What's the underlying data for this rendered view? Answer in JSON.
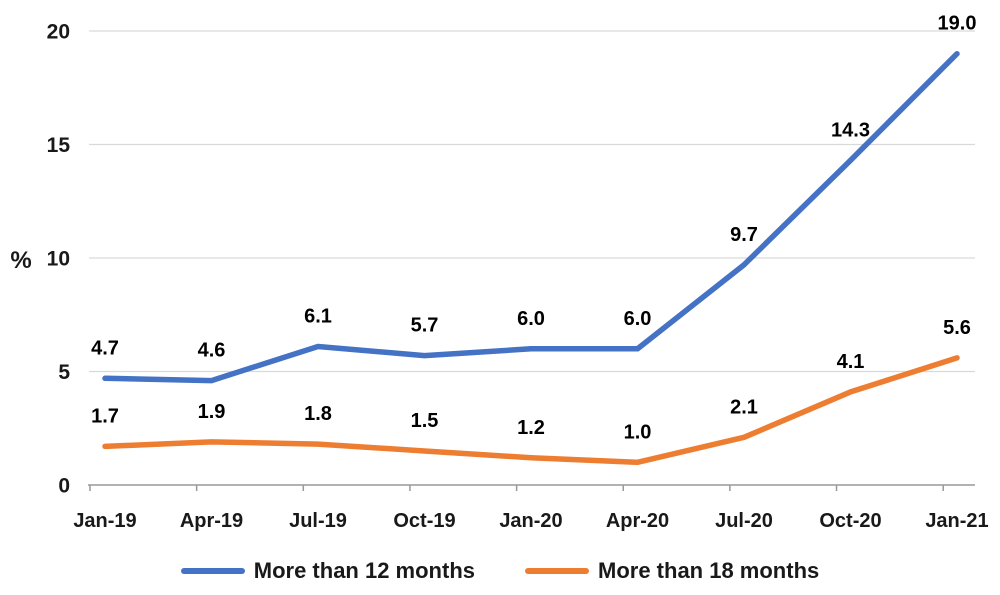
{
  "chart_data": {
    "type": "line",
    "title": "",
    "xlabel": "",
    "ylabel": "%",
    "ylim": [
      0,
      20
    ],
    "yticks": [
      0,
      5,
      10,
      15,
      20
    ],
    "grid": true,
    "data_labels": true,
    "legend_position": "bottom",
    "categories": [
      "Jan-19",
      "Apr-19",
      "Jul-19",
      "Oct-19",
      "Jan-20",
      "Apr-20",
      "Jul-20",
      "Oct-20",
      "Jan-21"
    ],
    "series": [
      {
        "name": "More than 12 months",
        "color": "#4472C4",
        "values": [
          4.7,
          4.6,
          6.1,
          5.7,
          6.0,
          6.0,
          9.7,
          14.3,
          19.0
        ]
      },
      {
        "name": "More than 18 months",
        "color": "#ED7D31",
        "values": [
          1.7,
          1.9,
          1.8,
          1.5,
          1.2,
          1.0,
          2.1,
          4.1,
          5.6
        ]
      }
    ]
  },
  "colors": {
    "gridline": "#D9D9D9",
    "axis": "#999999",
    "tick_label": "#191919",
    "data_label": "#000000"
  }
}
